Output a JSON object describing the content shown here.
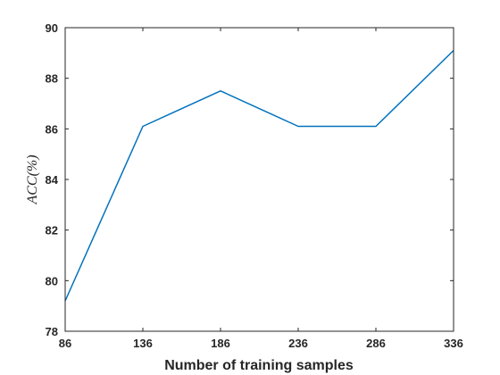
{
  "chart_data": {
    "type": "line",
    "title": "",
    "xlabel": "Number of training samples",
    "ylabel": "ACC(%)",
    "x": [
      86,
      136,
      186,
      236,
      286,
      336
    ],
    "xlim": [
      86,
      336
    ],
    "ylim": [
      78,
      90
    ],
    "xticks": [
      "86",
      "136",
      "186",
      "236",
      "286",
      "336"
    ],
    "yticks": [
      "78",
      "80",
      "82",
      "84",
      "86",
      "88",
      "90"
    ],
    "grid": false,
    "series": [
      {
        "values": [
          79.2,
          86.1,
          87.5,
          86.1,
          86.1,
          89.1
        ],
        "color": "#0072BD"
      }
    ]
  }
}
